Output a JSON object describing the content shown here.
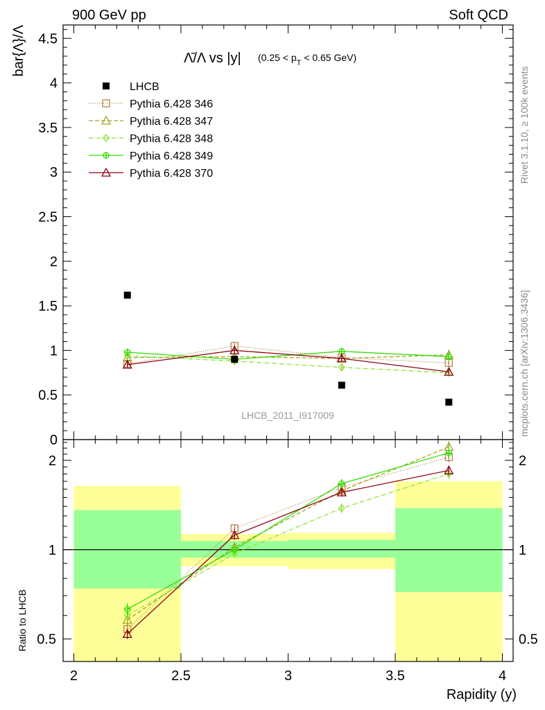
{
  "header": {
    "left": "900 GeV pp",
    "right": "Soft QCD"
  },
  "side_labels": {
    "rivet": "Rivet 3.1.10, ≥ 100k events",
    "mcplots": "mcplots.cern.ch [arXiv:1306.3436]"
  },
  "chart_data": [
    {
      "type": "scatter",
      "panel": "main",
      "title_main": "Λ̄/Λ vs |y|",
      "title_cut_pre": "(0.25 < p",
      "title_cut_sub": "T",
      "title_cut_post": " < 0.65 GeV)",
      "ylabel": "bar{Λ}/Λ",
      "watermark": "LHCB_2011_I917009",
      "xlim": [
        1.95,
        4.05
      ],
      "ylim": [
        0,
        4.65
      ],
      "y_ticks": [
        0,
        0.5,
        1,
        1.5,
        2,
        2.5,
        3,
        3.5,
        4,
        4.5
      ],
      "y_tick_labels": [
        "0",
        "0.5",
        "1",
        "1.5",
        "2",
        "2.5",
        "3",
        "3.5",
        "4",
        "4.5"
      ],
      "legend_position": "top-left",
      "x": [
        2.25,
        2.75,
        3.25,
        3.75
      ],
      "data": {
        "name": "LHCB",
        "color": "#000000",
        "values": [
          1.62,
          0.9,
          0.61,
          0.42
        ]
      },
      "series": [
        {
          "name": "Pythia 6.428 346",
          "color": "#b5854b",
          "marker": "square-open",
          "dash": "1,2",
          "values": [
            0.85,
            1.05,
            0.92,
            0.86
          ],
          "err": [
            0.03,
            0.03,
            0.03,
            0.04
          ]
        },
        {
          "name": "Pythia 6.428 347",
          "color": "#a4a325",
          "marker": "triangle-open",
          "dash": "6,3",
          "values": [
            0.92,
            0.93,
            0.91,
            0.95
          ],
          "err": [
            0.03,
            0.03,
            0.03,
            0.06
          ]
        },
        {
          "name": "Pythia 6.428 348",
          "color": "#8ae234",
          "marker": "diamond-open",
          "dash": "6,2,1,2",
          "values": [
            0.94,
            0.88,
            0.81,
            0.75
          ],
          "err": [
            0.03,
            0.03,
            0.03,
            0.03
          ]
        },
        {
          "name": "Pythia 6.428 349",
          "color": "#33dd00",
          "marker": "circle-cross",
          "dash": "",
          "values": [
            0.98,
            0.9,
            0.99,
            0.93
          ],
          "err": [
            0.04,
            0.03,
            0.03,
            0.04
          ]
        },
        {
          "name": "Pythia 6.428 370",
          "color": "#8b0010",
          "marker": "triangle-open",
          "dash": "",
          "values": [
            0.84,
            1.0,
            0.91,
            0.76
          ],
          "err": [
            0.03,
            0.03,
            0.03,
            0.03
          ]
        }
      ]
    },
    {
      "type": "scatter",
      "panel": "ratio",
      "ylabel": "Ratio to LHCB",
      "xlabel": "Rapidity (y)",
      "scale": "log",
      "xlim": [
        1.95,
        4.05
      ],
      "ylim": [
        0.42,
        2.35
      ],
      "x_ticks": [
        2,
        2.5,
        3,
        3.5,
        4
      ],
      "x_tick_labels": [
        "2",
        "2.5",
        "3",
        "3.5",
        "4"
      ],
      "y_ticks": [
        0.5,
        1,
        2
      ],
      "y_tick_labels": [
        "0.5",
        "1",
        "2"
      ],
      "x": [
        2.25,
        2.75,
        3.25,
        3.75
      ],
      "bands": [
        {
          "x": [
            2.0,
            2.5
          ],
          "stat": [
            0.74,
            1.36
          ],
          "total": [
            0.36,
            1.64
          ]
        },
        {
          "x": [
            2.5,
            3.0
          ],
          "stat": [
            0.94,
            1.07
          ],
          "total": [
            0.88,
            1.13
          ]
        },
        {
          "x": [
            3.0,
            3.5
          ],
          "stat": [
            0.94,
            1.08
          ],
          "total": [
            0.86,
            1.14
          ]
        },
        {
          "x": [
            3.5,
            4.0
          ],
          "stat": [
            0.72,
            1.38
          ],
          "total": [
            0.36,
            1.7
          ]
        }
      ],
      "band_colors": {
        "stat": "#99ff99",
        "total": "#ffff99"
      },
      "series": [
        {
          "name": "Pythia 6.428 346",
          "color": "#b5854b",
          "marker": "square-open",
          "dash": "1,2",
          "values": [
            0.54,
            1.18,
            1.62,
            2.05
          ],
          "err": [
            0.02,
            0.04,
            0.05,
            0.08
          ]
        },
        {
          "name": "Pythia 6.428 347",
          "color": "#a4a325",
          "marker": "triangle-open",
          "dash": "6,3",
          "values": [
            0.58,
            1.02,
            1.58,
            2.22
          ],
          "err": [
            0.02,
            0.04,
            0.05,
            0.1
          ]
        },
        {
          "name": "Pythia 6.428 348",
          "color": "#8ae234",
          "marker": "diamond-open",
          "dash": "6,2,1,2",
          "values": [
            0.6,
            0.97,
            1.38,
            1.8
          ],
          "err": [
            0.02,
            0.03,
            0.05,
            0.07
          ]
        },
        {
          "name": "Pythia 6.428 349",
          "color": "#33dd00",
          "marker": "circle-cross",
          "dash": "",
          "values": [
            0.63,
            1.0,
            1.67,
            2.12
          ],
          "err": [
            0.03,
            0.04,
            0.06,
            0.09
          ]
        },
        {
          "name": "Pythia 6.428 370",
          "color": "#8b0010",
          "marker": "triangle-open",
          "dash": "",
          "values": [
            0.52,
            1.12,
            1.56,
            1.85
          ],
          "err": [
            0.02,
            0.04,
            0.05,
            0.07
          ]
        }
      ]
    }
  ]
}
